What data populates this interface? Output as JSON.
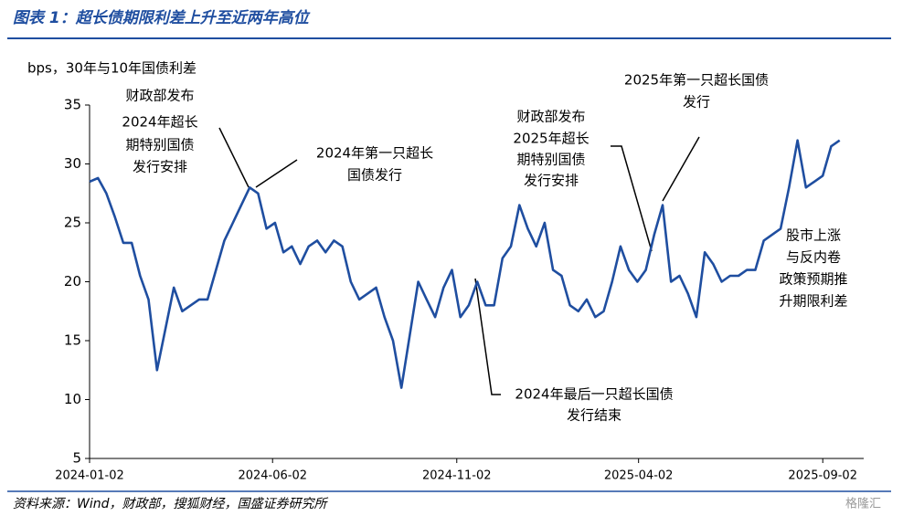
{
  "chart_data": {
    "type": "line",
    "title": "图表 1：超长债期限利差上升至近两年高位",
    "y_label": "bps，30年与10年国债利差",
    "source": "资料来源：Wind，财政部，搜狐财经，国盛证券研究所",
    "watermark": "格隆汇",
    "x": [
      "2024-01-02",
      "2024-01-09",
      "2024-01-16",
      "2024-01-23",
      "2024-01-30",
      "2024-02-06",
      "2024-02-13",
      "2024-02-20",
      "2024-02-27",
      "2024-03-05",
      "2024-03-12",
      "2024-03-19",
      "2024-03-26",
      "2024-04-02",
      "2024-04-09",
      "2024-04-16",
      "2024-04-23",
      "2024-04-30",
      "2024-05-07",
      "2024-05-14",
      "2024-05-21",
      "2024-05-28",
      "2024-06-04",
      "2024-06-11",
      "2024-06-18",
      "2024-06-25",
      "2024-07-02",
      "2024-07-09",
      "2024-07-16",
      "2024-07-23",
      "2024-07-30",
      "2024-08-06",
      "2024-08-13",
      "2024-08-20",
      "2024-08-27",
      "2024-09-03",
      "2024-09-10",
      "2024-09-17",
      "2024-09-24",
      "2024-10-01",
      "2024-10-08",
      "2024-10-15",
      "2024-10-22",
      "2024-10-29",
      "2024-11-05",
      "2024-11-12",
      "2024-11-19",
      "2024-11-26",
      "2024-12-03",
      "2024-12-10",
      "2024-12-17",
      "2024-12-24",
      "2024-12-31",
      "2025-01-07",
      "2025-01-14",
      "2025-01-21",
      "2025-01-28",
      "2025-02-04",
      "2025-02-11",
      "2025-02-18",
      "2025-02-25",
      "2025-03-04",
      "2025-03-11",
      "2025-03-18",
      "2025-03-25",
      "2025-04-01",
      "2025-04-08",
      "2025-04-15",
      "2025-04-22",
      "2025-04-29",
      "2025-05-06",
      "2025-05-13",
      "2025-05-20",
      "2025-05-27",
      "2025-06-03",
      "2025-06-10",
      "2025-06-17",
      "2025-06-24",
      "2025-07-01",
      "2025-07-08",
      "2025-07-15",
      "2025-07-22",
      "2025-07-29",
      "2025-08-05",
      "2025-08-12",
      "2025-08-19",
      "2025-08-26",
      "2025-09-02",
      "2025-09-09",
      "2025-09-16"
    ],
    "series": [
      {
        "color": "#1f4ea0",
        "values": [
          28.5,
          28.8,
          27.5,
          25.5,
          23.3,
          23.3,
          20.5,
          18.5,
          12.5,
          16,
          19.5,
          17.5,
          18,
          18.5,
          18.5,
          21,
          23.5,
          25,
          26.5,
          28,
          27.5,
          24.5,
          25,
          22.5,
          23,
          21.5,
          23,
          23.5,
          22.5,
          23.5,
          23,
          20,
          18.5,
          19,
          19.5,
          17,
          15,
          11,
          15.5,
          20,
          18.5,
          17,
          19.5,
          21,
          17,
          18,
          20,
          18,
          18,
          22,
          23,
          26.5,
          24.5,
          23,
          25,
          21,
          20.5,
          18,
          17.5,
          18.5,
          17,
          17.5,
          20,
          23,
          21,
          20,
          21,
          24,
          26.5,
          20,
          20.5,
          19,
          17,
          22.5,
          21.5,
          20,
          20.5,
          20.5,
          21,
          21,
          23.5,
          24,
          24.5,
          28,
          32,
          28,
          28.5,
          29,
          31.5,
          32
        ]
      }
    ],
    "xlim": [
      "2024-01-02",
      "2025-10-06"
    ],
    "xticks": [
      "2024-01-02",
      "2024-06-02",
      "2024-11-02",
      "2025-04-02",
      "2025-09-02"
    ],
    "ylim": [
      5,
      35
    ],
    "yticks": [
      5,
      10,
      15,
      20,
      25,
      30,
      35
    ],
    "annotations": [
      [
        "财政部发布",
        "2024年超长",
        "期特别国债",
        "发行安排"
      ],
      [
        "2024年第一只超长",
        "国债发行"
      ],
      [
        "2025年第一只超长国债",
        "发行"
      ],
      [
        "财政部发布",
        "2025年超长",
        "期特别国债",
        "发行安排"
      ],
      [
        "2024年最后一只超长国债",
        "发行结束"
      ],
      [
        "股市上涨",
        "与反内卷",
        "政策预期推",
        "升期限利差"
      ]
    ]
  }
}
